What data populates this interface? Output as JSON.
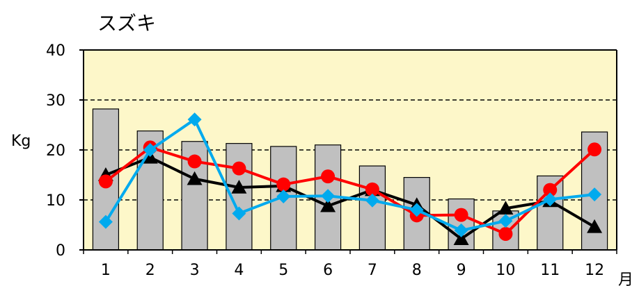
{
  "chart_data": {
    "type": "bar+line",
    "title": "スズキ",
    "ylabel": "Kg",
    "xlabel": "月",
    "ylim": [
      0,
      40
    ],
    "yticks": [
      0,
      10,
      20,
      30,
      40
    ],
    "categories": [
      "1",
      "2",
      "3",
      "4",
      "5",
      "6",
      "7",
      "8",
      "9",
      "10",
      "11",
      "12"
    ],
    "grid": "horizontal dashed",
    "plot_background": "#fdf7c9",
    "bars": {
      "color": "#c0c0c0",
      "values": [
        28.2,
        23.8,
        21.7,
        21.3,
        20.7,
        21.0,
        16.8,
        14.5,
        10.2,
        7.8,
        14.8,
        23.6
      ]
    },
    "series": [
      {
        "marker": "triangle",
        "color": "#000000",
        "values": [
          15.0,
          18.5,
          14.2,
          12.5,
          12.8,
          8.8,
          12.0,
          9.0,
          2.2,
          8.3,
          9.8,
          4.6
        ]
      },
      {
        "marker": "circle",
        "color": "#ff0000",
        "values": [
          13.7,
          20.5,
          17.7,
          16.3,
          13.1,
          14.7,
          12.1,
          6.9,
          7.0,
          3.2,
          12.0,
          20.1
        ]
      },
      {
        "marker": "diamond",
        "color": "#00aaee",
        "values": [
          5.6,
          20.0,
          26.1,
          7.3,
          10.7,
          10.8,
          9.9,
          8.0,
          3.9,
          5.8,
          10.1,
          11.1
        ]
      }
    ]
  }
}
